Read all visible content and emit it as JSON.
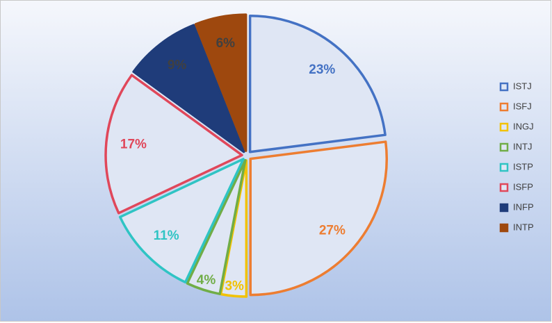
{
  "chart_data": {
    "type": "pie",
    "categories": [
      "ISTJ",
      "ISFJ",
      "INGJ",
      "INTJ",
      "ISTP",
      "ISFP",
      "INFP",
      "INTP"
    ],
    "values": [
      23,
      27,
      3,
      4,
      11,
      17,
      9,
      6
    ],
    "value_labels": [
      "23%",
      "27%",
      "3%",
      "4%",
      "11%",
      "17%",
      "9%",
      "6%"
    ],
    "colors": [
      "#4472c4",
      "#ed7d31",
      "#f2c200",
      "#70ad47",
      "#2fc4c4",
      "#e0475a",
      "#1f3c7a",
      "#9e480e"
    ],
    "fills": [
      "#dfe6f4",
      "#dfe6f4",
      "#dfe6f4",
      "#dfe6f4",
      "#dfe6f4",
      "#dfe6f4",
      "#1f3c7a",
      "#9e480e"
    ],
    "legend": "right"
  }
}
